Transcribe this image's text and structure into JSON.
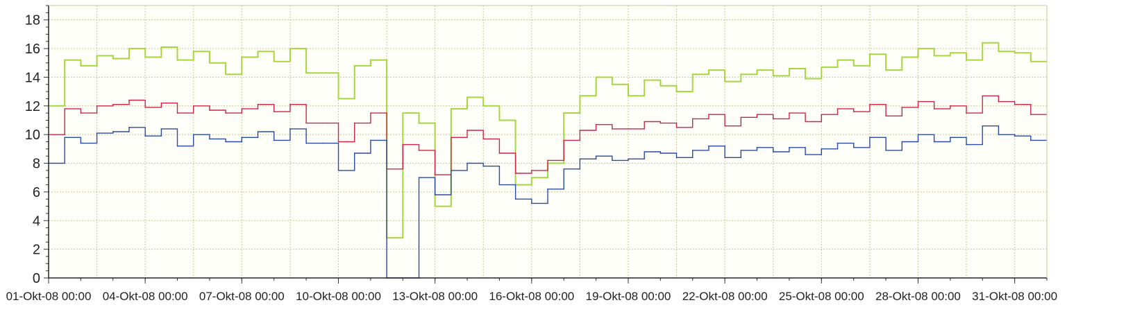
{
  "chart_data": {
    "type": "line",
    "title": "",
    "xlabel": "",
    "ylabel": "",
    "ylim": [
      0,
      19
    ],
    "xlim": [
      "01-Okt-08 00:00",
      "01-Nov-08 00:00"
    ],
    "yticks": [
      0,
      2,
      4,
      6,
      8,
      10,
      12,
      14,
      16,
      18
    ],
    "xtick_labels": [
      "01-Okt-08 00:00",
      "04-Okt-08 00:00",
      "07-Okt-08 00:00",
      "10-Okt-08 00:00",
      "13-Okt-08 00:00",
      "16-Okt-08 00:00",
      "19-Okt-08 00:00",
      "22-Okt-08 00:00",
      "25-Okt-08 00:00",
      "28-Okt-08 00:00",
      "31-Okt-08 00:00"
    ],
    "grid": true,
    "legend": "none",
    "colors": {
      "green": "#a6d63c",
      "red": "#cc2447",
      "blue": "#2a49a6",
      "grid": "#c8c896",
      "background": "#fffffa"
    },
    "series": [
      {
        "color": "#a6d63c",
        "x": [
          "01-Okt-08 00:00",
          "01-Okt-08 12:00",
          "02-Okt-08 00:00",
          "02-Okt-08 12:00",
          "03-Okt-08 00:00",
          "03-Okt-08 12:00",
          "04-Okt-08 00:00",
          "04-Okt-08 12:00",
          "05-Okt-08 00:00",
          "05-Okt-08 12:00",
          "06-Okt-08 00:00",
          "06-Okt-08 12:00",
          "07-Okt-08 00:00",
          "07-Okt-08 12:00",
          "08-Okt-08 00:00",
          "08-Okt-08 12:00",
          "09-Okt-08 00:00",
          "09-Okt-08 12:00",
          "10-Okt-08 00:00",
          "10-Okt-08 12:00",
          "11-Okt-08 00:00",
          "11-Okt-08 12:00",
          "12-Okt-08 00:00",
          "12-Okt-08 12:00",
          "13-Okt-08 00:00",
          "13-Okt-08 12:00",
          "14-Okt-08 00:00",
          "14-Okt-08 12:00",
          "15-Okt-08 00:00",
          "15-Okt-08 12:00",
          "16-Okt-08 00:00",
          "16-Okt-08 12:00",
          "17-Okt-08 00:00",
          "17-Okt-08 12:00",
          "18-Okt-08 00:00",
          "18-Okt-08 12:00",
          "19-Okt-08 00:00",
          "19-Okt-08 12:00",
          "20-Okt-08 00:00",
          "20-Okt-08 12:00",
          "21-Okt-08 00:00",
          "21-Okt-08 12:00",
          "22-Okt-08 00:00",
          "22-Okt-08 12:00",
          "23-Okt-08 00:00",
          "23-Okt-08 12:00",
          "24-Okt-08 00:00",
          "24-Okt-08 12:00",
          "25-Okt-08 00:00",
          "25-Okt-08 12:00",
          "26-Okt-08 00:00",
          "26-Okt-08 12:00",
          "27-Okt-08 00:00",
          "27-Okt-08 12:00",
          "28-Okt-08 00:00",
          "28-Okt-08 12:00",
          "29-Okt-08 00:00",
          "29-Okt-08 12:00",
          "30-Okt-08 00:00",
          "30-Okt-08 12:00",
          "31-Okt-08 00:00",
          "31-Okt-08 12:00"
        ],
        "values": [
          12,
          15.2,
          14.8,
          15.5,
          15.3,
          16,
          15.4,
          16.1,
          15.2,
          15.8,
          15,
          14.2,
          15.4,
          15.8,
          15.1,
          16,
          14.3,
          14.3,
          12.5,
          14.8,
          15.2,
          2.8,
          11.5,
          10.8,
          5,
          11.8,
          12.6,
          12,
          11,
          6.5,
          7,
          8,
          11.5,
          12.7,
          14,
          13.5,
          12.7,
          13.8,
          13.4,
          13,
          14.2,
          14.5,
          13.7,
          14.2,
          14.5,
          14.1,
          14.6,
          13.9,
          14.7,
          15.2,
          14.8,
          15.6,
          14.5,
          15.4,
          16,
          15.5,
          15.7,
          15.2,
          16.4,
          15.8,
          15.7,
          15.1
        ]
      },
      {
        "color": "#cc2447",
        "x": [
          "01-Okt-08 00:00",
          "01-Okt-08 12:00",
          "02-Okt-08 00:00",
          "02-Okt-08 12:00",
          "03-Okt-08 00:00",
          "03-Okt-08 12:00",
          "04-Okt-08 00:00",
          "04-Okt-08 12:00",
          "05-Okt-08 00:00",
          "05-Okt-08 12:00",
          "06-Okt-08 00:00",
          "06-Okt-08 12:00",
          "07-Okt-08 00:00",
          "07-Okt-08 12:00",
          "08-Okt-08 00:00",
          "08-Okt-08 12:00",
          "09-Okt-08 00:00",
          "09-Okt-08 12:00",
          "10-Okt-08 00:00",
          "10-Okt-08 12:00",
          "11-Okt-08 00:00",
          "11-Okt-08 12:00",
          "12-Okt-08 00:00",
          "12-Okt-08 12:00",
          "13-Okt-08 00:00",
          "13-Okt-08 12:00",
          "14-Okt-08 00:00",
          "14-Okt-08 12:00",
          "15-Okt-08 00:00",
          "15-Okt-08 12:00",
          "16-Okt-08 00:00",
          "16-Okt-08 12:00",
          "17-Okt-08 00:00",
          "17-Okt-08 12:00",
          "18-Okt-08 00:00",
          "18-Okt-08 12:00",
          "19-Okt-08 00:00",
          "19-Okt-08 12:00",
          "20-Okt-08 00:00",
          "20-Okt-08 12:00",
          "21-Okt-08 00:00",
          "21-Okt-08 12:00",
          "22-Okt-08 00:00",
          "22-Okt-08 12:00",
          "23-Okt-08 00:00",
          "23-Okt-08 12:00",
          "24-Okt-08 00:00",
          "24-Okt-08 12:00",
          "25-Okt-08 00:00",
          "25-Okt-08 12:00",
          "26-Okt-08 00:00",
          "26-Okt-08 12:00",
          "27-Okt-08 00:00",
          "27-Okt-08 12:00",
          "28-Okt-08 00:00",
          "28-Okt-08 12:00",
          "29-Okt-08 00:00",
          "29-Okt-08 12:00",
          "30-Okt-08 00:00",
          "30-Okt-08 12:00",
          "31-Okt-08 00:00",
          "31-Okt-08 12:00"
        ],
        "values": [
          10,
          11.8,
          11.5,
          12,
          12.1,
          12.4,
          11.9,
          12.2,
          11.5,
          12,
          11.7,
          11.5,
          11.8,
          12.1,
          11.6,
          12.1,
          10.8,
          10.8,
          9.5,
          10.8,
          11.5,
          7.6,
          9.3,
          8.9,
          7.2,
          9.8,
          10.3,
          9.7,
          8.7,
          7.3,
          7.5,
          8.2,
          9.6,
          10.3,
          10.7,
          10.4,
          10.4,
          10.9,
          10.8,
          10.5,
          11.1,
          11.4,
          10.6,
          11.2,
          11.4,
          11.1,
          11.5,
          10.9,
          11.4,
          11.8,
          11.6,
          12.1,
          11.3,
          11.9,
          12.3,
          11.8,
          12,
          11.5,
          12.7,
          12.3,
          12.1,
          11.4
        ]
      },
      {
        "color": "#2a49a6",
        "x": [
          "01-Okt-08 00:00",
          "01-Okt-08 12:00",
          "02-Okt-08 00:00",
          "02-Okt-08 12:00",
          "03-Okt-08 00:00",
          "03-Okt-08 12:00",
          "04-Okt-08 00:00",
          "04-Okt-08 12:00",
          "05-Okt-08 00:00",
          "05-Okt-08 12:00",
          "06-Okt-08 00:00",
          "06-Okt-08 12:00",
          "07-Okt-08 00:00",
          "07-Okt-08 12:00",
          "08-Okt-08 00:00",
          "08-Okt-08 12:00",
          "09-Okt-08 00:00",
          "09-Okt-08 12:00",
          "10-Okt-08 00:00",
          "10-Okt-08 12:00",
          "11-Okt-08 00:00",
          "11-Okt-08 12:00",
          "12-Okt-08 00:00",
          "12-Okt-08 12:00",
          "13-Okt-08 00:00",
          "13-Okt-08 12:00",
          "14-Okt-08 00:00",
          "14-Okt-08 12:00",
          "15-Okt-08 00:00",
          "15-Okt-08 12:00",
          "16-Okt-08 00:00",
          "16-Okt-08 12:00",
          "17-Okt-08 00:00",
          "17-Okt-08 12:00",
          "18-Okt-08 00:00",
          "18-Okt-08 12:00",
          "19-Okt-08 00:00",
          "19-Okt-08 12:00",
          "20-Okt-08 00:00",
          "20-Okt-08 12:00",
          "21-Okt-08 00:00",
          "21-Okt-08 12:00",
          "22-Okt-08 00:00",
          "22-Okt-08 12:00",
          "23-Okt-08 00:00",
          "23-Okt-08 12:00",
          "24-Okt-08 00:00",
          "24-Okt-08 12:00",
          "25-Okt-08 00:00",
          "25-Okt-08 12:00",
          "26-Okt-08 00:00",
          "26-Okt-08 12:00",
          "27-Okt-08 00:00",
          "27-Okt-08 12:00",
          "28-Okt-08 00:00",
          "28-Okt-08 12:00",
          "29-Okt-08 00:00",
          "29-Okt-08 12:00",
          "30-Okt-08 00:00",
          "30-Okt-08 12:00",
          "31-Okt-08 00:00",
          "31-Okt-08 12:00"
        ],
        "values": [
          8,
          9.8,
          9.4,
          10.1,
          10.2,
          10.5,
          9.9,
          10.4,
          9.2,
          10,
          9.7,
          9.5,
          9.8,
          10.2,
          9.6,
          10.4,
          9.4,
          9.4,
          7.5,
          8.7,
          9.6,
          0,
          0,
          7,
          5.8,
          7.5,
          8,
          7.8,
          6.5,
          5.5,
          5.2,
          6.2,
          7.6,
          8.3,
          8.5,
          8.2,
          8.3,
          8.8,
          8.7,
          8.4,
          8.9,
          9.2,
          8.4,
          8.9,
          9.1,
          8.8,
          9.1,
          8.6,
          9,
          9.4,
          9.1,
          9.8,
          8.9,
          9.5,
          10,
          9.5,
          9.8,
          9.3,
          10.6,
          10,
          9.9,
          9.6
        ]
      }
    ]
  }
}
